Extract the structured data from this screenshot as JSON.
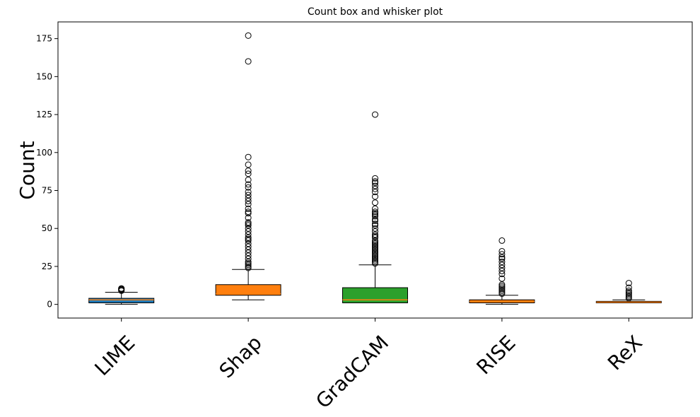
{
  "chart_data": {
    "type": "box",
    "title": "Count box and whisker plot",
    "xlabel": "",
    "ylabel": "Count",
    "ylim": [
      -9,
      186
    ],
    "yticks": [
      0,
      25,
      50,
      75,
      100,
      125,
      150,
      175
    ],
    "grid": false,
    "categories": [
      "LIME",
      "Shap",
      "GradCAM",
      "RISE",
      "ReX"
    ],
    "colors": [
      "#1f77b4",
      "#ff7f0e",
      "#2ca02c",
      "#ff7f0e",
      "#ff7f0e"
    ],
    "median_color": "#ff7f0e",
    "boxes": [
      {
        "name": "LIME",
        "whislo": 0,
        "q1": 1,
        "med": 3,
        "q3": 4,
        "whishi": 8,
        "fliers": [
          9,
          9.5,
          10,
          10,
          10.5
        ]
      },
      {
        "name": "Shap",
        "whislo": 3,
        "q1": 6,
        "med": 7,
        "q3": 13,
        "whishi": 23,
        "fliers": [
          24,
          25,
          26,
          27,
          28,
          30,
          32,
          34,
          36,
          38,
          40,
          42,
          43,
          44,
          46,
          48,
          50,
          52,
          53,
          54,
          57,
          60,
          61,
          63,
          66,
          68,
          70,
          72,
          74,
          77,
          79,
          82,
          86,
          88,
          92,
          97,
          160,
          177
        ]
      },
      {
        "name": "GradCAM",
        "whislo": 1,
        "q1": 1,
        "med": 3,
        "q3": 11,
        "whishi": 26,
        "fliers": [
          27,
          28,
          29,
          30,
          31,
          32,
          33,
          34,
          35,
          36,
          37,
          38,
          39,
          40,
          41,
          42,
          44,
          45,
          46,
          48,
          50,
          52,
          53,
          55,
          56,
          58,
          59,
          60,
          61,
          63,
          67,
          71,
          74,
          76,
          78,
          80,
          81,
          83,
          125
        ]
      },
      {
        "name": "RISE",
        "whislo": 0,
        "q1": 1,
        "med": 2,
        "q3": 3,
        "whishi": 6,
        "fliers": [
          7,
          8,
          9,
          10,
          11,
          12,
          13,
          17,
          20,
          22,
          24,
          26,
          28,
          30,
          31,
          33,
          35,
          42
        ]
      },
      {
        "name": "ReX",
        "whislo": 1,
        "q1": 1,
        "med": 1.5,
        "q3": 2,
        "whishi": 3,
        "fliers": [
          4,
          5,
          6,
          7,
          8,
          9,
          11,
          14
        ]
      }
    ]
  }
}
